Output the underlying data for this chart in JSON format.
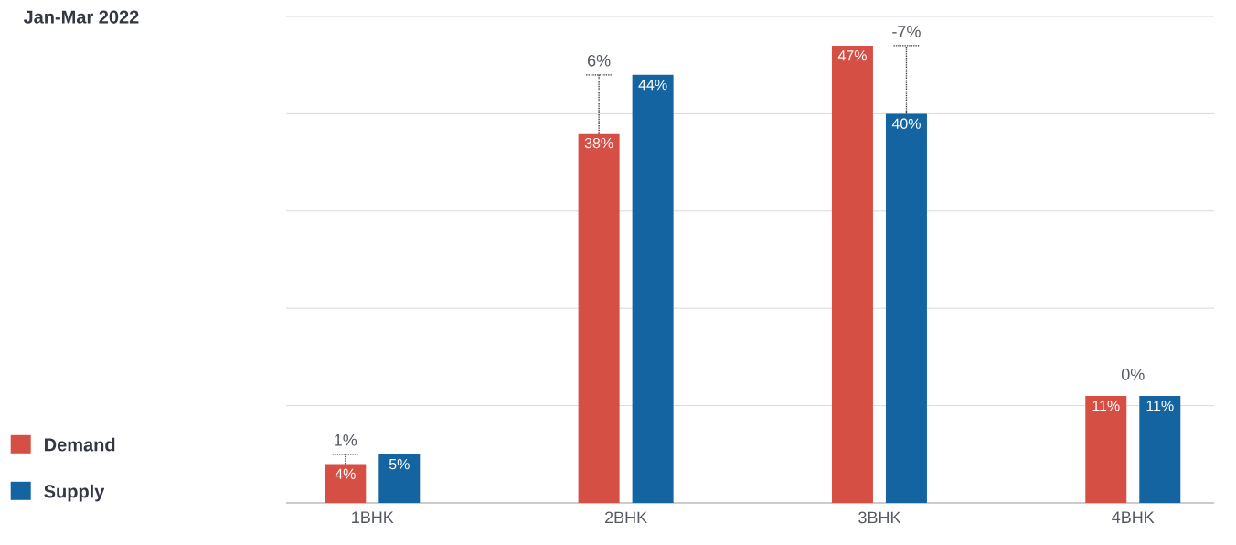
{
  "chart_data": {
    "type": "bar",
    "title": "Jan-Mar 2022",
    "categories": [
      "1BHK",
      "2BHK",
      "3BHK",
      "4BHK"
    ],
    "series": [
      {
        "name": "Demand",
        "color": "#d64f45",
        "values": [
          4,
          38,
          47,
          11
        ],
        "value_labels": [
          "4%",
          "38%",
          "47%",
          "11%"
        ]
      },
      {
        "name": "Supply",
        "color": "#1464a2",
        "values": [
          5,
          44,
          40,
          11
        ],
        "value_labels": [
          "5%",
          "44%",
          "40%",
          "11%"
        ]
      }
    ],
    "annotations": [
      "1%",
      "6%",
      "-7%",
      "0%"
    ],
    "ylim": [
      0,
      50
    ],
    "yticks": [
      {
        "value": 0,
        "label": null
      },
      {
        "value": 10,
        "label": null
      },
      {
        "value": 20,
        "label": null
      },
      {
        "value": 30,
        "label": null
      },
      {
        "value": 40,
        "label": null
      },
      {
        "value": 50,
        "label": null
      }
    ],
    "grid": "y",
    "legend": "left",
    "tick_labels": "x"
  }
}
